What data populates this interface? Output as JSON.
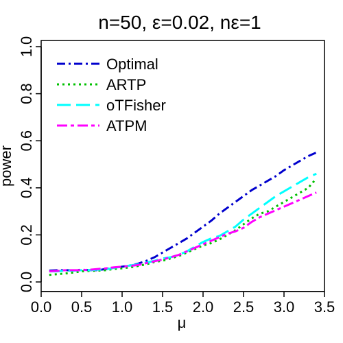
{
  "chart_data": {
    "type": "line",
    "title": "n=50, ε=0.02, nε=1",
    "xlabel": "μ",
    "ylabel": "power",
    "xlim": [
      0.0,
      3.5
    ],
    "ylim": [
      0.0,
      1.0
    ],
    "xticks": [
      "0.0",
      "0.5",
      "1.0",
      "1.5",
      "2.0",
      "2.5",
      "3.0",
      "3.5"
    ],
    "yticks": [
      "0.0",
      "0.2",
      "0.4",
      "0.6",
      "0.8",
      "1.0"
    ],
    "grid": false,
    "legend_position": "top-left",
    "x": [
      0.1,
      0.2,
      0.3,
      0.4,
      0.5,
      0.6,
      0.7,
      0.8,
      0.9,
      1.0,
      1.1,
      1.2,
      1.3,
      1.4,
      1.5,
      1.6,
      1.7,
      1.8,
      1.9,
      2.0,
      2.1,
      2.2,
      2.3,
      2.4,
      2.5,
      2.6,
      2.7,
      2.8,
      2.9,
      3.0,
      3.1,
      3.2,
      3.3,
      3.4
    ],
    "series": [
      {
        "name": "Optimal",
        "color": "#0000CD",
        "dash": "dotdash",
        "values": [
          0.048,
          0.05,
          0.05,
          0.049,
          0.052,
          0.05,
          0.05,
          0.055,
          0.06,
          0.065,
          0.07,
          0.078,
          0.09,
          0.105,
          0.125,
          0.145,
          0.165,
          0.185,
          0.21,
          0.235,
          0.26,
          0.29,
          0.315,
          0.34,
          0.365,
          0.39,
          0.41,
          0.43,
          0.45,
          0.475,
          0.495,
          0.515,
          0.535,
          0.55
        ]
      },
      {
        "name": "ARTP",
        "color": "#00C000",
        "dash": "dotted",
        "values": [
          0.03,
          0.033,
          0.036,
          0.04,
          0.045,
          0.047,
          0.048,
          0.05,
          0.055,
          0.058,
          0.062,
          0.068,
          0.075,
          0.085,
          0.09,
          0.1,
          0.11,
          0.125,
          0.14,
          0.155,
          0.165,
          0.18,
          0.2,
          0.22,
          0.245,
          0.27,
          0.29,
          0.3,
          0.32,
          0.34,
          0.36,
          0.38,
          0.4,
          0.44
        ]
      },
      {
        "name": "oTFisher",
        "color": "#00FFFF",
        "dash": "longdash",
        "values": [
          0.045,
          0.045,
          0.048,
          0.048,
          0.05,
          0.05,
          0.052,
          0.053,
          0.06,
          0.065,
          0.07,
          0.075,
          0.082,
          0.09,
          0.1,
          0.105,
          0.115,
          0.13,
          0.15,
          0.17,
          0.185,
          0.195,
          0.215,
          0.235,
          0.265,
          0.29,
          0.315,
          0.34,
          0.365,
          0.385,
          0.405,
          0.425,
          0.445,
          0.46
        ]
      },
      {
        "name": "ATPM",
        "color": "#FF00FF",
        "dash": "twodash",
        "values": [
          0.045,
          0.047,
          0.05,
          0.05,
          0.05,
          0.052,
          0.055,
          0.058,
          0.062,
          0.065,
          0.068,
          0.072,
          0.08,
          0.088,
          0.095,
          0.105,
          0.115,
          0.13,
          0.145,
          0.16,
          0.175,
          0.19,
          0.205,
          0.215,
          0.23,
          0.255,
          0.275,
          0.29,
          0.305,
          0.32,
          0.335,
          0.35,
          0.365,
          0.38
        ]
      }
    ]
  }
}
